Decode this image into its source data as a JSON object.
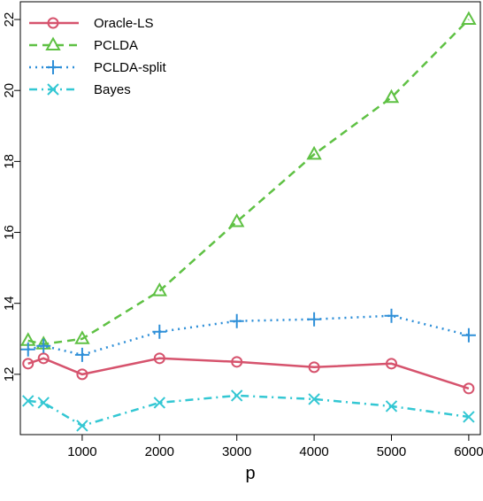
{
  "chart_data": {
    "type": "line",
    "xlabel": "p",
    "ylabel": "",
    "xlim": [
      200,
      6150
    ],
    "ylim": [
      10.3,
      22.5
    ],
    "xticks": [
      1000,
      2000,
      3000,
      4000,
      5000,
      6000
    ],
    "yticks": [
      12,
      14,
      16,
      18,
      20,
      22
    ],
    "x": [
      300,
      500,
      1000,
      2000,
      3000,
      4000,
      5000,
      6000
    ],
    "grid": false,
    "legend": "top-left",
    "series": [
      {
        "name": "Oracle-LS",
        "color": "#d6536d",
        "marker": "circle",
        "dash": "solid",
        "values": [
          12.3,
          12.45,
          12.0,
          12.45,
          12.35,
          12.2,
          12.3,
          11.6
        ]
      },
      {
        "name": "PCLDA",
        "color": "#5fc144",
        "marker": "triangle",
        "dash": "dashed",
        "values": [
          12.95,
          12.85,
          13.0,
          14.35,
          16.3,
          18.2,
          19.8,
          22.0
        ]
      },
      {
        "name": "PCLDA-split",
        "color": "#2e8fd8",
        "marker": "plus",
        "dash": "dotted",
        "values": [
          12.7,
          12.8,
          12.55,
          13.2,
          13.5,
          13.55,
          13.65,
          13.1
        ]
      },
      {
        "name": "Bayes",
        "color": "#33c7d3",
        "marker": "cross",
        "dash": "dashdot",
        "values": [
          11.25,
          11.2,
          10.55,
          11.2,
          11.4,
          11.3,
          11.1,
          10.8
        ]
      }
    ]
  }
}
